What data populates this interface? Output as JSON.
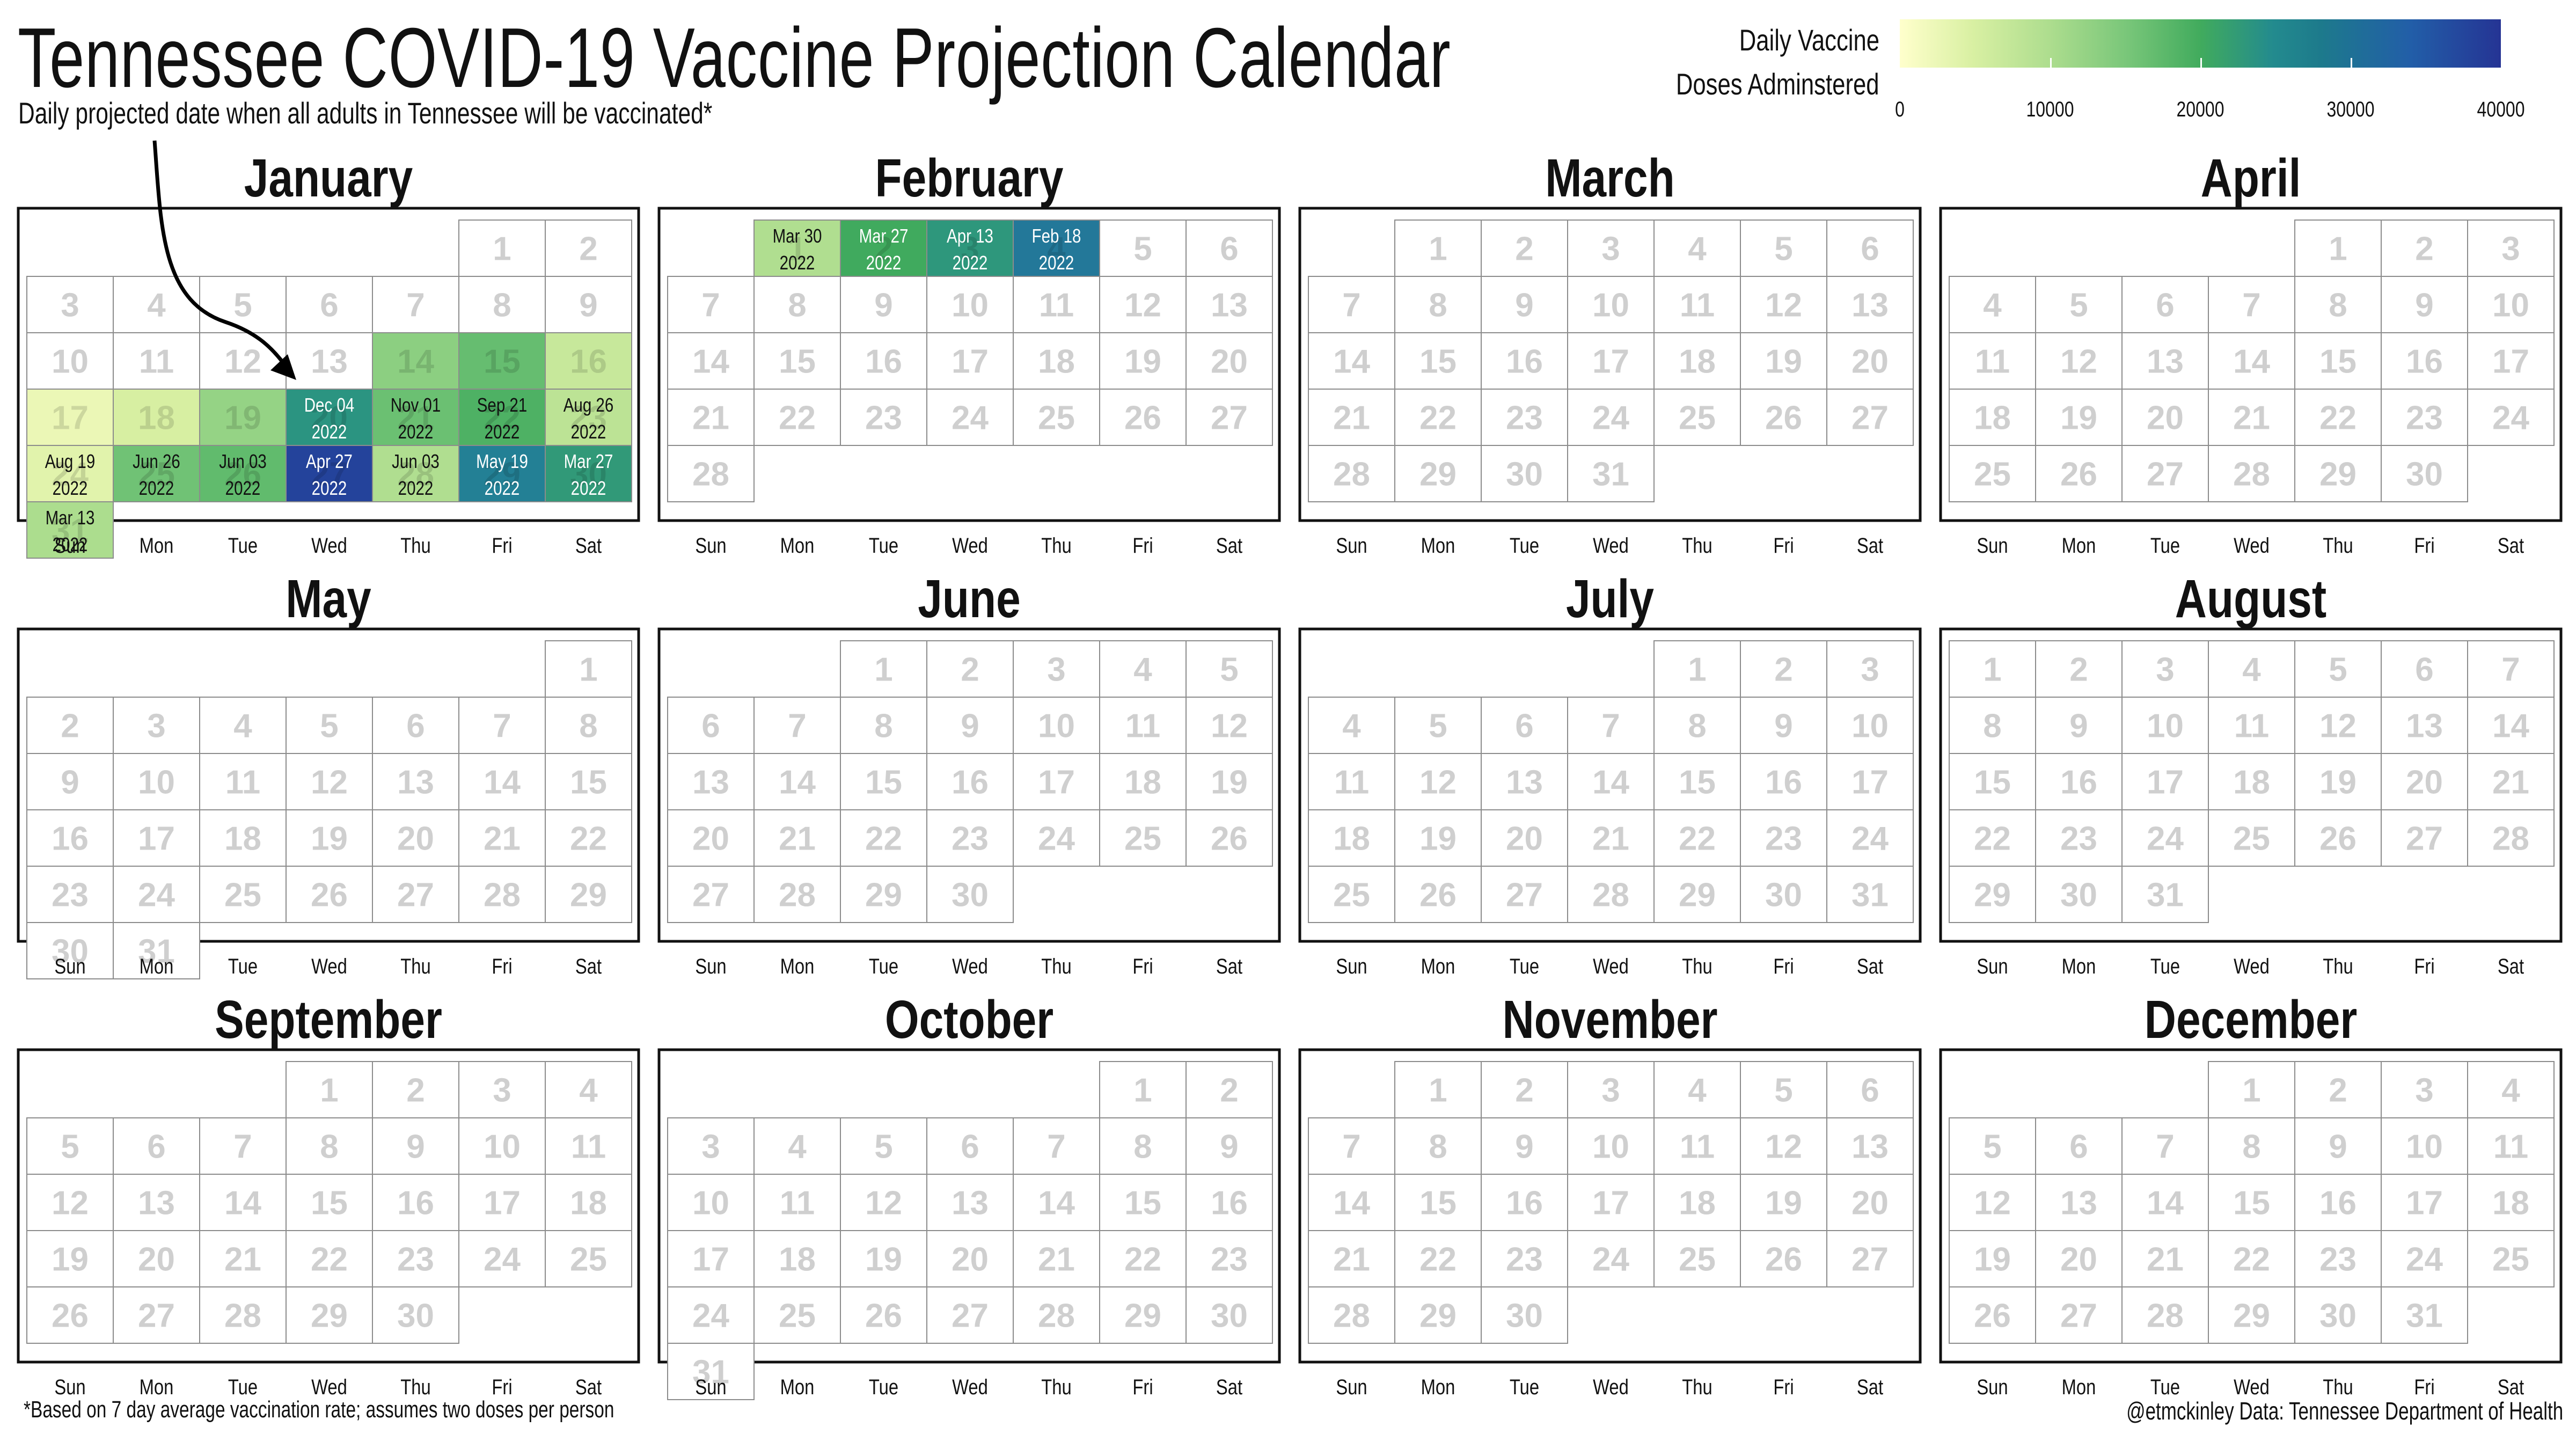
{
  "title": "Tennessee COVID-19 Vaccine Projection Calendar",
  "subtitle": "Daily projected date when all adults in Tennessee will be vaccinated*",
  "footnote": "*Based on 7 day average vaccination rate; assumes two doses per person",
  "credit": "@etmckinley Data: Tennessee Department of Health",
  "legend": {
    "title_line1": "Daily Vaccine",
    "title_line2": "Doses Adminstered",
    "ticks": [
      "0",
      "10000",
      "20000",
      "30000",
      "40000"
    ],
    "colors": [
      "#ffffcc",
      "#d9f0a3",
      "#addd8e",
      "#78c679",
      "#41ab5d",
      "#238b8e",
      "#225ea8",
      "#253494"
    ]
  },
  "chart_data": {
    "type": "heatmap",
    "title": "Tennessee COVID-19 Vaccine Projection Calendar",
    "subtitle": "Daily projected date when all adults in Tennessee will be vaccinated*",
    "colorbar": {
      "label": "Daily Vaccine Doses Adminstered",
      "range": [
        0,
        40000
      ],
      "ticks": [
        0,
        10000,
        20000,
        30000,
        40000
      ]
    },
    "weekdays": [
      "Sun",
      "Mon",
      "Tue",
      "Wed",
      "Thu",
      "Fri",
      "Sat"
    ],
    "months": [
      {
        "name": "January",
        "first_weekday": 5,
        "days": 31
      },
      {
        "name": "February",
        "first_weekday": 1,
        "days": 28
      },
      {
        "name": "March",
        "first_weekday": 1,
        "days": 31
      },
      {
        "name": "April",
        "first_weekday": 4,
        "days": 30
      },
      {
        "name": "May",
        "first_weekday": 6,
        "days": 31
      },
      {
        "name": "June",
        "first_weekday": 2,
        "days": 30
      },
      {
        "name": "July",
        "first_weekday": 4,
        "days": 31
      },
      {
        "name": "August",
        "first_weekday": 0,
        "days": 31
      },
      {
        "name": "September",
        "first_weekday": 3,
        "days": 30
      },
      {
        "name": "October",
        "first_weekday": 5,
        "days": 31
      },
      {
        "name": "November",
        "first_weekday": 1,
        "days": 30
      },
      {
        "name": "December",
        "first_weekday": 3,
        "days": 31
      }
    ],
    "filled_days": [
      {
        "month": "January",
        "day": 14,
        "doses": 15000
      },
      {
        "month": "January",
        "day": 15,
        "doses": 19000
      },
      {
        "month": "January",
        "day": 16,
        "doses": 8000
      },
      {
        "month": "January",
        "day": 17,
        "doses": 3000
      },
      {
        "month": "January",
        "day": 18,
        "doses": 6000
      },
      {
        "month": "January",
        "day": 19,
        "doses": 14000
      },
      {
        "month": "January",
        "day": 20,
        "projected": "Dec 04 2022",
        "doses": 27000
      },
      {
        "month": "January",
        "day": 21,
        "projected": "Nov 01 2022",
        "doses": 18500
      },
      {
        "month": "January",
        "day": 22,
        "projected": "Sep 21 2022",
        "doses": 21500
      },
      {
        "month": "January",
        "day": 23,
        "projected": "Aug 26 2022",
        "doses": 9500
      },
      {
        "month": "January",
        "day": 24,
        "projected": "Aug 19 2022",
        "doses": 4500
      },
      {
        "month": "January",
        "day": 25,
        "projected": "Jun 26 2022",
        "doses": 18000
      },
      {
        "month": "January",
        "day": 26,
        "projected": "Jun 03 2022",
        "doses": 19500
      },
      {
        "month": "January",
        "day": 27,
        "projected": "Apr 27 2022",
        "doses": 38000
      },
      {
        "month": "January",
        "day": 28,
        "projected": "Jun 03 2022",
        "doses": 11000
      },
      {
        "month": "January",
        "day": 29,
        "projected": "May 19 2022",
        "doses": 30000
      },
      {
        "month": "January",
        "day": 30,
        "projected": "Mar 27 2022",
        "doses": 26000
      },
      {
        "month": "January",
        "day": 31,
        "projected": "Mar 13 2022",
        "doses": 11500
      },
      {
        "month": "February",
        "day": 1,
        "projected": "Mar 30 2022",
        "doses": 11000
      },
      {
        "month": "February",
        "day": 2,
        "projected": "Mar 27 2022",
        "doses": 23000
      },
      {
        "month": "February",
        "day": 3,
        "projected": "Apr 13 2022",
        "doses": 26500
      },
      {
        "month": "February",
        "day": 4,
        "projected": "Feb 18 2022",
        "doses": 31000
      }
    ]
  }
}
